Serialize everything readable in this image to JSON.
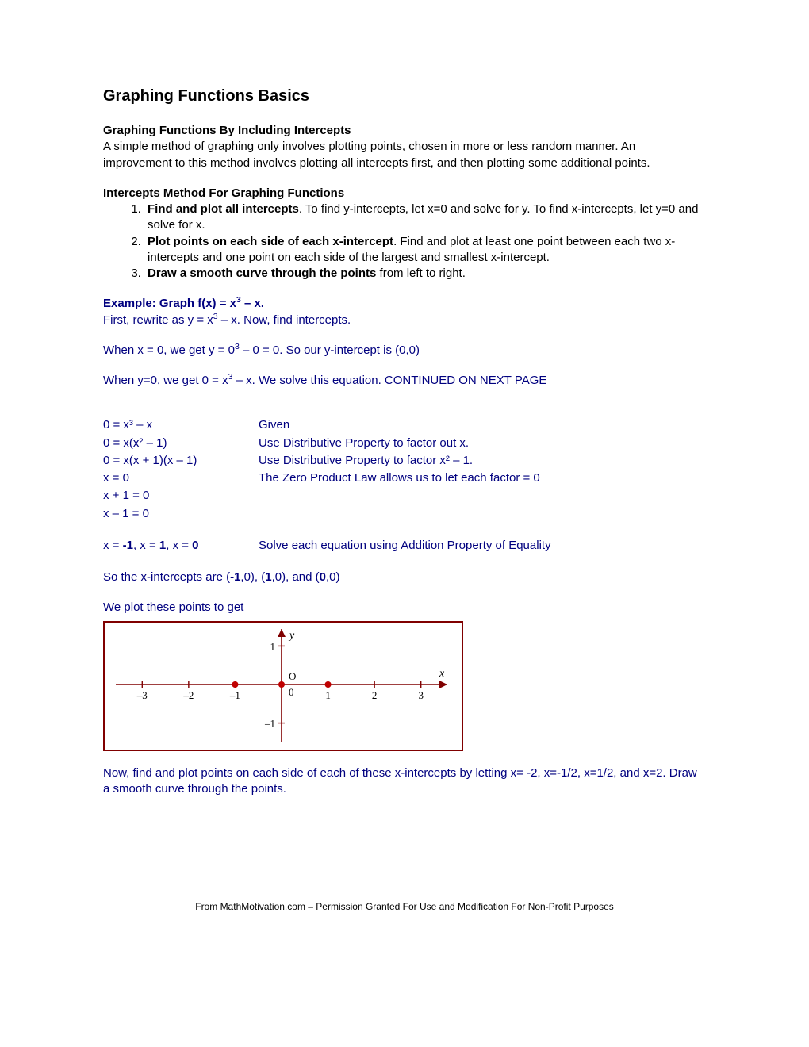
{
  "title": "Graphing Functions Basics",
  "sec1_head": "Graphing Functions By Including Intercepts",
  "sec1_body": "A simple method of graphing only involves plotting points, chosen in more or less random manner. An improvement to this method involves plotting all intercepts first, and then plotting some additional points.",
  "sec2_head": "Intercepts Method For Graphing Functions",
  "step1_b": "Find and plot all intercepts",
  "step1_r": ". To find y-intercepts, let x=0 and solve for y. To find x-intercepts, let y=0 and solve for x.",
  "step2_b": "Plot points on each side of each x-intercept",
  "step2_r": ". Find and plot at least one point between each two x-intercepts and one point on each side of the largest and smallest x-intercept.",
  "step3_b": "Draw a smooth curve through the points",
  "step3_r": " from left to right.",
  "ex_head_a": "Example: Graph f(x) = x",
  "ex_head_b": " – x.",
  "ex_l1a": "First, rewrite as y = x",
  "ex_l1b": " – x.  Now, find intercepts.",
  "ex_l2a": "When x = 0, we get y = 0",
  "ex_l2b": " – 0 = 0.  So our y-intercept is (0,0)",
  "ex_l3a": "When y=0, we get 0 = x",
  "ex_l3b": " – x.  We solve this equation. CONTINUED ON NEXT PAGE",
  "eq": [
    {
      "l": "0 = x³ – x",
      "r": "Given"
    },
    {
      "l": "0 = x(x² – 1)",
      "r": "Use Distributive Property to factor out x."
    },
    {
      "l": "0 = x(x + 1)(x – 1)",
      "r": "Use Distributive Property to factor x² – 1."
    },
    {
      "l": "x = 0",
      "r": "The Zero Product Law allows us to let each factor = 0"
    },
    {
      "l": "x + 1 = 0",
      "r": ""
    },
    {
      "l": "x – 1 = 0",
      "r": ""
    }
  ],
  "sol_a": "x = ",
  "sol_a2": "-1",
  "sol_b": ", x = ",
  "sol_b2": "1",
  "sol_c": ", x = ",
  "sol_c2": "0",
  "sol_r": "Solve each equation using Addition Property of Equality",
  "int_a": "So the x-intercepts are (",
  "int_1": "-1",
  "int_b": ",0), (",
  "int_2": "1",
  "int_c": ",0), and (",
  "int_3": "0",
  "int_d": ",0)",
  "plot_line": "We plot these points to get",
  "after_a": "Now, find and plot points on each side of each of these x-intercepts by letting x= -2, x=-1/2, x=1/2, and x=2. Draw a smooth curve through the points.",
  "footer": "From MathMotivation.com – Permission Granted For Use and Modification For Non-Profit Purposes",
  "graph": {
    "border_color": "#800000",
    "axis_color": "#800000",
    "text_color": "#000000",
    "dot_color": "#c00000",
    "xmin": -3.5,
    "xmax": 3.5,
    "ymin": -1.4,
    "ymax": 1.4,
    "xticks": [
      -3,
      -2,
      -1,
      0,
      1,
      2,
      3
    ],
    "yticks": [
      -1,
      1
    ],
    "dots": [
      [
        -1,
        0
      ],
      [
        0,
        0
      ],
      [
        1,
        0
      ]
    ],
    "font_size": 13,
    "label_font": "serif"
  }
}
